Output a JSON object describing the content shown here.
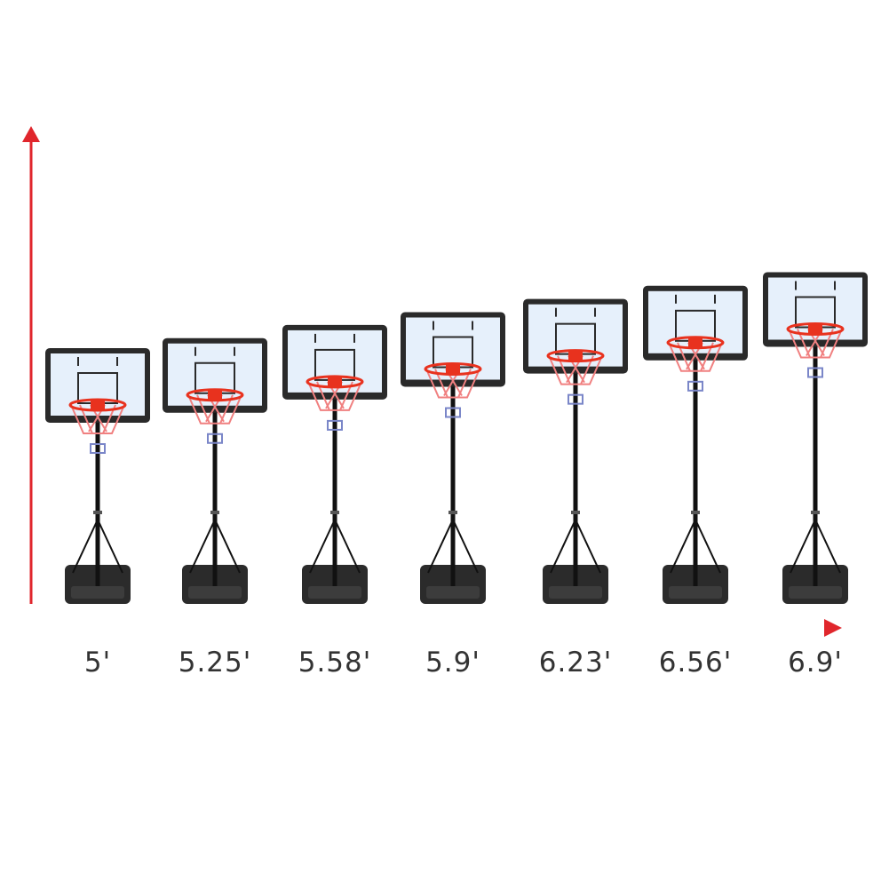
{
  "colors": {
    "arrow": "#e0262c",
    "frame": "#2a2a2a",
    "board": "#e6f0fb",
    "rim": "#e8321e",
    "net": "#f08080",
    "pole": "#111111",
    "base": "#2b2b2b"
  },
  "axes": {
    "vertical_arrow": "arrow-up",
    "horizontal_arrow": "arrow-right"
  },
  "hoops": [
    {
      "height_label": "5'",
      "height_ft": 5
    },
    {
      "height_label": "5.25'",
      "height_ft": 5.25
    },
    {
      "height_label": "5.58'",
      "height_ft": 5.58
    },
    {
      "height_label": "5.9'",
      "height_ft": 5.9
    },
    {
      "height_label": "6.23'",
      "height_ft": 6.23
    },
    {
      "height_label": "6.56'",
      "height_ft": 6.56
    },
    {
      "height_label": "6.9'",
      "height_ft": 6.9
    }
  ]
}
